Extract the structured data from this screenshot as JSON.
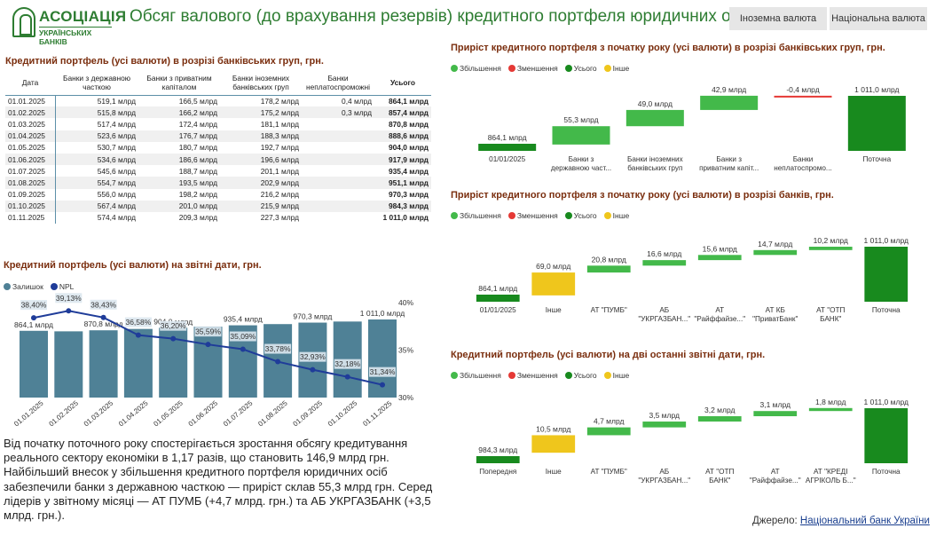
{
  "header": {
    "logo_big": "АСОЦІАЦІЯ",
    "logo_small": "УКРАЇНСЬКИХ БАНКІВ",
    "title": "Обсяг валового (до врахування резервів) кредитного портфеля юридичних осіб",
    "btn_foreign": "Іноземна валюта",
    "btn_national": "Національна валюта"
  },
  "colors": {
    "green": "#43b94a",
    "red": "#e53935",
    "darkgreen": "#188a1e",
    "yellow": "#efc61c",
    "bar": "#4f8196",
    "npl": "#1f3c99"
  },
  "table": {
    "title": "Кредитний  портфель    (усі валюти) в розрізі банківських груп,  грн.",
    "headers": [
      "Дата",
      "Банки з державною часткою",
      "Банки з приватним капіталом",
      "Банки іноземних банківських груп",
      "Банки неплатоспроможні",
      "Усього"
    ],
    "rows": [
      [
        "01.01.2025",
        "519,1 млрд",
        "166,5 млрд",
        "178,2 млрд",
        "0,4 млрд",
        "864,1 млрд"
      ],
      [
        "01.02.2025",
        "515,8 млрд",
        "166,2 млрд",
        "175,2 млрд",
        "0,3 млрд",
        "857,4 млрд"
      ],
      [
        "01.03.2025",
        "517,4 млрд",
        "172,4 млрд",
        "181,1 млрд",
        "",
        "870,8 млрд"
      ],
      [
        "01.04.2025",
        "523,6 млрд",
        "176,7 млрд",
        "188,3 млрд",
        "",
        "888,6 млрд"
      ],
      [
        "01.05.2025",
        "530,7 млрд",
        "180,7 млрд",
        "192,7 млрд",
        "",
        "904,0 млрд"
      ],
      [
        "01.06.2025",
        "534,6 млрд",
        "186,6 млрд",
        "196,6 млрд",
        "",
        "917,9 млрд"
      ],
      [
        "01.07.2025",
        "545,6 млрд",
        "188,7 млрд",
        "201,1 млрд",
        "",
        "935,4 млрд"
      ],
      [
        "01.08.2025",
        "554,7 млрд",
        "193,5 млрд",
        "202,9 млрд",
        "",
        "951,1 млрд"
      ],
      [
        "01.09.2025",
        "556,0 млрд",
        "198,2 млрд",
        "216,2 млрд",
        "",
        "970,3 млрд"
      ],
      [
        "01.10.2025",
        "567,4 млрд",
        "201,0 млрд",
        "215,9 млрд",
        "",
        "984,3 млрд"
      ],
      [
        "01.11.2025",
        "574,4 млрд",
        "209,3 млрд",
        "227,3 млрд",
        "",
        "1 011,0 млрд"
      ]
    ]
  },
  "legend_labels": {
    "increase": "Збільшення",
    "decrease": "Зменшення",
    "total": "Усього",
    "other": "Інше",
    "balance": "Залишок",
    "npl": "NPL"
  },
  "commentary": "Від початку поточного року спостерігається зростання обсягу кредитування реального сектору економіки в 1,17 разів, що становить 146,9 млрд грн. Найбільший внесок у збільшення кредитного портфеля юридичних осіб забезпечили  банки з державною часткою — приріст склав 55,3 млрд грн. Серед лідерів у звітному місяці — АТ ПУМБ (+4,7 млрд. грн.) та АБ УКРГАЗБАНК (+3,5 млрд. грн.).",
  "source": {
    "label": "Джерело:",
    "link": "Національний банк України"
  },
  "chart_data": [
    {
      "type": "bar",
      "id": "combo",
      "title": "Кредитний портфель   (усі валюти) на  звітні дати, грн.",
      "categories": [
        "01.01.2025",
        "01.02.2025",
        "01.03.2025",
        "01.04.2025",
        "01.05.2025",
        "01.06.2025",
        "01.07.2025",
        "01.08.2025",
        "01.09.2025",
        "01.10.2025",
        "01.11.2025"
      ],
      "series": [
        {
          "name": "Залишок",
          "values": [
            864.1,
            857.4,
            870.8,
            888.6,
            904.0,
            917.9,
            935.4,
            951.1,
            970.3,
            984.3,
            1011.0
          ],
          "labels": [
            "864,1 млрд",
            "",
            "870,8 млрд",
            "",
            "904,0 млрд",
            "",
            "935,4 млрд",
            "",
            "970,3 млрд",
            "",
            "1 011,0 млрд"
          ]
        },
        {
          "name": "NPL",
          "type": "line",
          "values": [
            38.4,
            39.13,
            38.43,
            36.58,
            36.2,
            35.59,
            35.09,
            33.78,
            32.93,
            32.18,
            31.34
          ],
          "labels": [
            "38,40%",
            "39,13%",
            "38,43%",
            "36,58%",
            "36,20%",
            "35,59%",
            "35,09%",
            "33,78%",
            "32,93%",
            "32,18%",
            "31,34%"
          ]
        }
      ],
      "y2_ticks": [
        "40%",
        "35%",
        "30%"
      ],
      "y2lim": [
        30,
        40
      ]
    },
    {
      "type": "bar",
      "id": "wf1",
      "subtype": "waterfall",
      "title": "Приріст кредитного портфеля з початку року   (усі валюти) в розрізі банківських груп, грн.",
      "items": [
        {
          "label": [
            "01/01/2025"
          ],
          "value": 864.1,
          "kind": "start",
          "text": "864,1 млрд"
        },
        {
          "label": [
            "Банки з",
            "державною част..."
          ],
          "value": 55.3,
          "kind": "inc",
          "text": "55,3 млрд"
        },
        {
          "label": [
            "Банки іноземних",
            "банківських груп"
          ],
          "value": 49.0,
          "kind": "inc",
          "text": "49,0 млрд"
        },
        {
          "label": [
            "Банки з",
            "приватним капіт..."
          ],
          "value": 42.9,
          "kind": "inc",
          "text": "42,9 млрд"
        },
        {
          "label": [
            "Банки",
            "неплатоспромо..."
          ],
          "value": -0.4,
          "kind": "dec",
          "text": "-0,4 млрд"
        },
        {
          "label": [
            "Поточна"
          ],
          "value": 1011.0,
          "kind": "total",
          "text": "1 011,0 млрд"
        }
      ]
    },
    {
      "type": "bar",
      "id": "wf2",
      "subtype": "waterfall",
      "title": "Приріст кредитного портфеля з початку року    (усі валюти) в розрізі банків, грн.",
      "items": [
        {
          "label": [
            "01/01/2025"
          ],
          "value": 864.1,
          "kind": "start",
          "text": "864,1 млрд"
        },
        {
          "label": [
            "Інше"
          ],
          "value": 69.0,
          "kind": "other",
          "text": "69,0 млрд"
        },
        {
          "label": [
            "АТ \"ПУМБ\""
          ],
          "value": 20.8,
          "kind": "inc",
          "text": "20,8 млрд"
        },
        {
          "label": [
            "АБ",
            "\"УКРГАЗБАН...\""
          ],
          "value": 16.6,
          "kind": "inc",
          "text": "16,6 млрд"
        },
        {
          "label": [
            "АТ",
            "\"Райффайзе...\""
          ],
          "value": 15.6,
          "kind": "inc",
          "text": "15,6 млрд"
        },
        {
          "label": [
            "АТ КБ",
            "\"ПриватБанк\""
          ],
          "value": 14.7,
          "kind": "inc",
          "text": "14,7 млрд"
        },
        {
          "label": [
            "АТ \"ОТП",
            "БАНК\""
          ],
          "value": 10.2,
          "kind": "inc",
          "text": "10,2 млрд"
        },
        {
          "label": [
            "Поточна"
          ],
          "value": 1011.0,
          "kind": "total",
          "text": "1 011,0 млрд"
        }
      ]
    },
    {
      "type": "bar",
      "id": "wf3",
      "subtype": "waterfall",
      "title": "Кредитний портфель   (усі валюти) на дві останні звітні дати, грн.",
      "items": [
        {
          "label": [
            "Попередня"
          ],
          "value": 984.3,
          "kind": "start",
          "text": "984,3 млрд"
        },
        {
          "label": [
            "Інше"
          ],
          "value": 10.5,
          "kind": "other",
          "text": "10,5 млрд"
        },
        {
          "label": [
            "АТ \"ПУМБ\""
          ],
          "value": 4.7,
          "kind": "inc",
          "text": "4,7 млрд"
        },
        {
          "label": [
            "АБ",
            "\"УКРГАЗБАН...\""
          ],
          "value": 3.5,
          "kind": "inc",
          "text": "3,5 млрд"
        },
        {
          "label": [
            "АТ \"ОТП",
            "БАНК\""
          ],
          "value": 3.2,
          "kind": "inc",
          "text": "3,2 млрд"
        },
        {
          "label": [
            "АТ",
            "\"Райффайзе...\""
          ],
          "value": 3.1,
          "kind": "inc",
          "text": "3,1 млрд"
        },
        {
          "label": [
            "АТ \"КРЕДІ",
            "АГРІКОЛЬ Б...\""
          ],
          "value": 1.8,
          "kind": "inc",
          "text": "1,8 млрд"
        },
        {
          "label": [
            "Поточна"
          ],
          "value": 1011.0,
          "kind": "total",
          "text": "1 011,0 млрд"
        }
      ]
    }
  ]
}
